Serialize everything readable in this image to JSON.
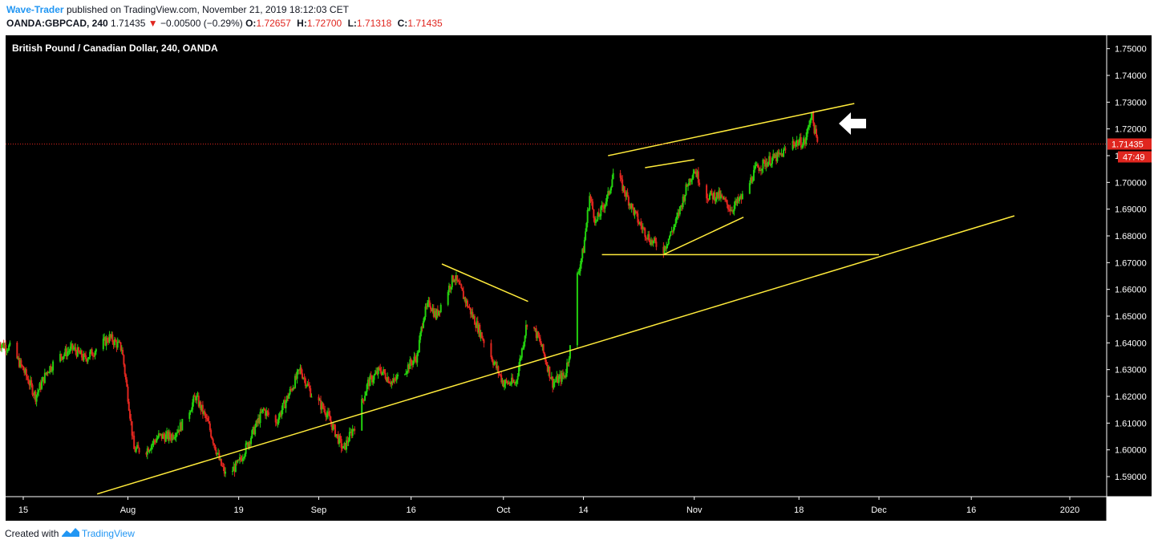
{
  "header": {
    "author": "Wave-Trader",
    "published_text": "published on TradingView.com, November 21, 2019 18:12:03 CET",
    "symbol": "OANDA:GBPCAD, 240",
    "last": "1.71435",
    "change": "−0.00500 (−0.29%)",
    "ohlc": [
      {
        "label": "O:",
        "value": "1.72657"
      },
      {
        "label": "H:",
        "value": "1.72700"
      },
      {
        "label": "L:",
        "value": "1.71318"
      },
      {
        "label": "C:",
        "value": "1.71435"
      }
    ]
  },
  "footer": {
    "created_with": "Created with",
    "brand": "TradingView"
  },
  "colors": {
    "background": "#000000",
    "up": "#23d10e",
    "down": "#e0261f",
    "trendline": "#ffeb3b",
    "price_line": "#e0261f",
    "arrow": "#ffffff"
  },
  "chart_data": {
    "type": "candlestick",
    "title": "British Pound / Canadian Dollar, 240, OANDA",
    "x_ticks": [
      "15",
      "Aug",
      "19",
      "Sep",
      "16",
      "Oct",
      "14",
      "Nov",
      "18",
      "Dec",
      "16",
      "2020"
    ],
    "y_ticks": [
      "1.59000",
      "1.60000",
      "1.61000",
      "1.62000",
      "1.63000",
      "1.64000",
      "1.65000",
      "1.66000",
      "1.67000",
      "1.68000",
      "1.69000",
      "1.70000",
      "1.71000",
      "1.72000",
      "1.73000",
      "1.74000",
      "1.75000"
    ],
    "ylim": [
      1.5825,
      1.755
    ],
    "last_price_label": "1.71435",
    "countdown_label": "47:49",
    "last_price": 1.71435,
    "trendlines": [
      {
        "from": [
          "Jul 27 2019",
          1.5835
        ],
        "to": [
          "Dec 23 2019",
          1.6875
        ]
      },
      {
        "from": [
          "Oct 18 2019",
          1.71
        ],
        "to": [
          "Nov 27 2019",
          1.7295
        ]
      },
      {
        "from": [
          "Oct 24 2019",
          1.7055
        ],
        "to": [
          "Nov 1 2019",
          1.7085
        ]
      },
      {
        "from": [
          "Oct 27 2019",
          1.673
        ],
        "to": [
          "Nov 9 2019",
          1.687
        ]
      },
      {
        "from": [
          "Oct 17 2019",
          1.673
        ],
        "to": [
          "Dec 1 2019",
          1.673
        ]
      },
      {
        "from": [
          "Sep 21 2019",
          1.6695
        ],
        "to": [
          "Oct 5 2019",
          1.6555
        ]
      }
    ],
    "grid": false,
    "path_keypoints": [
      [
        "Jul 11",
        1.64
      ],
      [
        "Jul 13",
        1.638
      ],
      [
        "Jul 15",
        1.63
      ],
      [
        "Jul 17",
        1.62
      ],
      [
        "Jul 19",
        1.63
      ],
      [
        "Jul 21",
        1.635
      ],
      [
        "Jul 23",
        1.638
      ],
      [
        "Jul 25",
        1.634
      ],
      [
        "Jul 27",
        1.638
      ],
      [
        "Jul 29",
        1.642
      ],
      [
        "Jul 31",
        1.638
      ],
      [
        "Aug 1",
        1.62
      ],
      [
        "Aug 2",
        1.6
      ],
      [
        "Aug 4",
        1.6
      ],
      [
        "Aug 6",
        1.605
      ],
      [
        "Aug 8",
        1.605
      ],
      [
        "Aug 10",
        1.61
      ],
      [
        "Aug 12",
        1.62
      ],
      [
        "Aug 14",
        1.61
      ],
      [
        "Aug 16",
        1.595
      ],
      [
        "Aug 17",
        1.59
      ],
      [
        "Aug 19",
        1.595
      ],
      [
        "Aug 21",
        1.605
      ],
      [
        "Aug 23",
        1.615
      ],
      [
        "Aug 25",
        1.61
      ],
      [
        "Aug 27",
        1.62
      ],
      [
        "Aug 29",
        1.63
      ],
      [
        "Aug 31",
        1.62
      ],
      [
        "Sep 2",
        1.615
      ],
      [
        "Sep 4",
        1.605
      ],
      [
        "Sep 5",
        1.6
      ],
      [
        "Sep 7",
        1.61
      ],
      [
        "Sep 9",
        1.625
      ],
      [
        "Sep 11",
        1.63
      ],
      [
        "Sep 13",
        1.625
      ],
      [
        "Sep 15",
        1.63
      ],
      [
        "Sep 17",
        1.635
      ],
      [
        "Sep 18",
        1.65
      ],
      [
        "Sep 19",
        1.655
      ],
      [
        "Sep 20",
        1.65
      ],
      [
        "Sep 22",
        1.66
      ],
      [
        "Sep 23",
        1.665
      ],
      [
        "Sep 25",
        1.655
      ],
      [
        "Sep 27",
        1.645
      ],
      [
        "Sep 29",
        1.635
      ],
      [
        "Oct 1",
        1.625
      ],
      [
        "Oct 3",
        1.625
      ],
      [
        "Oct 5",
        1.65
      ],
      [
        "Oct 7",
        1.64
      ],
      [
        "Oct 9",
        1.625
      ],
      [
        "Oct 11",
        1.628
      ],
      [
        "Oct 12",
        1.64
      ],
      [
        "Oct 13",
        1.665
      ],
      [
        "Oct 14",
        1.675
      ],
      [
        "Oct 15",
        1.695
      ],
      [
        "Oct 16",
        1.685
      ],
      [
        "Oct 18",
        1.695
      ],
      [
        "Oct 19",
        1.705
      ],
      [
        "Oct 21",
        1.695
      ],
      [
        "Oct 23",
        1.685
      ],
      [
        "Oct 25",
        1.678
      ],
      [
        "Oct 27",
        1.675
      ],
      [
        "Oct 29",
        1.685
      ],
      [
        "Oct 31",
        1.7
      ],
      [
        "Nov 1",
        1.705
      ],
      [
        "Nov 3",
        1.695
      ],
      [
        "Nov 5",
        1.695
      ],
      [
        "Nov 7",
        1.69
      ],
      [
        "Nov 9",
        1.695
      ],
      [
        "Nov 11",
        1.705
      ],
      [
        "Nov 13",
        1.708
      ],
      [
        "Nov 15",
        1.71
      ],
      [
        "Nov 17",
        1.715
      ],
      [
        "Nov 19",
        1.715
      ],
      [
        "Nov 20",
        1.726
      ],
      [
        "Nov 21",
        1.7143
      ]
    ]
  }
}
